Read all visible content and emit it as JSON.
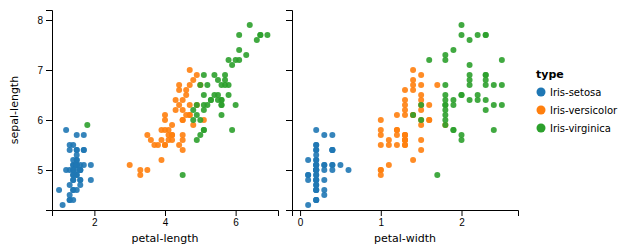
{
  "chart_data": [
    {
      "type": "scatter",
      "xlabel": "petal-length",
      "ylabel": "sepal-length",
      "xlim": [
        0.8,
        7.2
      ],
      "xticks": [
        2,
        4,
        6
      ],
      "ylim": [
        4.2,
        8.2
      ],
      "yticks": [
        5,
        6,
        7,
        8
      ],
      "series": [
        {
          "name": "Iris-setosa",
          "color": "#1f77b4",
          "x": [
            1.4,
            1.4,
            1.3,
            1.5,
            1.4,
            1.7,
            1.4,
            1.5,
            1.4,
            1.5,
            1.5,
            1.6,
            1.4,
            1.1,
            1.2,
            1.5,
            1.3,
            1.4,
            1.7,
            1.5,
            1.7,
            1.5,
            1.0,
            1.7,
            1.9,
            1.6,
            1.6,
            1.5,
            1.4,
            1.6,
            1.6,
            1.5,
            1.5,
            1.4,
            1.5,
            1.2,
            1.3,
            1.4,
            1.3,
            1.5,
            1.3,
            1.3,
            1.3,
            1.6,
            1.9,
            1.4,
            1.6,
            1.4,
            1.5,
            1.4
          ],
          "values": [
            5.1,
            4.9,
            4.7,
            4.6,
            5.0,
            5.4,
            4.6,
            5.0,
            4.4,
            4.9,
            5.4,
            4.8,
            4.8,
            4.3,
            5.8,
            5.7,
            5.4,
            5.1,
            5.7,
            5.1,
            5.4,
            5.1,
            4.6,
            5.1,
            4.8,
            5.0,
            5.0,
            5.2,
            5.2,
            4.7,
            4.8,
            5.4,
            5.2,
            5.5,
            4.9,
            5.0,
            5.5,
            4.9,
            4.4,
            5.1,
            5.0,
            4.5,
            4.4,
            5.0,
            5.1,
            4.8,
            5.1,
            4.6,
            5.3,
            5.0
          ]
        },
        {
          "name": "Iris-versicolor",
          "color": "#ff7f0e",
          "x": [
            4.7,
            4.5,
            4.9,
            4.0,
            4.6,
            4.5,
            4.7,
            3.3,
            4.6,
            3.9,
            3.5,
            4.2,
            4.0,
            4.7,
            3.6,
            4.4,
            4.5,
            4.1,
            4.5,
            3.9,
            4.8,
            4.0,
            4.9,
            4.7,
            4.3,
            4.4,
            4.8,
            5.0,
            4.5,
            3.5,
            3.8,
            3.7,
            3.9,
            5.1,
            4.5,
            4.5,
            4.7,
            4.4,
            4.1,
            4.0,
            4.4,
            4.6,
            4.0,
            3.3,
            4.2,
            4.2,
            4.2,
            4.3,
            3.0,
            4.1
          ],
          "values": [
            7.0,
            6.4,
            6.9,
            5.5,
            6.5,
            5.7,
            6.3,
            4.9,
            6.6,
            5.2,
            5.0,
            5.9,
            6.0,
            6.1,
            5.6,
            6.7,
            5.6,
            5.8,
            6.2,
            5.6,
            5.9,
            6.1,
            6.3,
            6.1,
            6.4,
            6.6,
            6.8,
            6.7,
            6.0,
            5.7,
            5.5,
            5.5,
            5.8,
            6.0,
            5.4,
            6.0,
            6.7,
            6.3,
            5.6,
            5.5,
            5.5,
            6.1,
            5.8,
            5.0,
            5.6,
            5.7,
            5.7,
            6.2,
            5.1,
            5.7
          ]
        },
        {
          "name": "Iris-virginica",
          "color": "#2ca02c",
          "x": [
            6.0,
            5.1,
            5.9,
            5.6,
            5.8,
            6.6,
            4.5,
            6.3,
            5.8,
            6.1,
            5.1,
            5.3,
            5.5,
            5.0,
            5.1,
            5.3,
            5.5,
            6.7,
            6.9,
            5.0,
            5.7,
            4.9,
            6.7,
            4.9,
            5.7,
            6.0,
            4.8,
            4.9,
            5.6,
            5.8,
            6.1,
            6.4,
            5.6,
            5.1,
            5.6,
            6.1,
            5.6,
            5.5,
            4.8,
            5.4,
            5.6,
            5.1,
            5.9,
            5.7,
            5.2,
            5.0,
            5.2,
            5.4,
            5.1,
            1.8
          ],
          "values": [
            6.3,
            5.8,
            7.1,
            6.3,
            6.5,
            7.6,
            4.9,
            7.3,
            6.7,
            7.2,
            6.5,
            6.4,
            6.8,
            5.7,
            5.8,
            6.4,
            6.5,
            7.7,
            7.7,
            6.0,
            6.9,
            5.6,
            7.7,
            6.3,
            6.7,
            7.2,
            6.2,
            6.1,
            6.4,
            7.2,
            7.4,
            7.9,
            6.4,
            6.3,
            6.1,
            7.7,
            6.3,
            6.4,
            6.0,
            6.9,
            6.7,
            6.9,
            5.8,
            6.8,
            6.7,
            6.7,
            6.3,
            6.5,
            6.2,
            5.9
          ]
        }
      ]
    },
    {
      "type": "scatter",
      "xlabel": "petal-width",
      "legend_title": "type",
      "legend": "right",
      "tick_labels": "x",
      "xlim": [
        -0.1,
        2.7
      ],
      "xticks": [
        0,
        1,
        2
      ],
      "ylim": [
        4.2,
        8.2
      ],
      "yticks": [
        5,
        6,
        7,
        8
      ],
      "series": [
        {
          "name": "Iris-setosa",
          "color": "#1f77b4",
          "x": [
            0.2,
            0.2,
            0.2,
            0.2,
            0.2,
            0.4,
            0.3,
            0.2,
            0.2,
            0.1,
            0.2,
            0.2,
            0.1,
            0.1,
            0.2,
            0.4,
            0.4,
            0.3,
            0.3,
            0.3,
            0.2,
            0.4,
            0.2,
            0.5,
            0.2,
            0.2,
            0.4,
            0.2,
            0.2,
            0.2,
            0.2,
            0.4,
            0.1,
            0.2,
            0.2,
            0.2,
            0.2,
            0.1,
            0.2,
            0.2,
            0.3,
            0.3,
            0.2,
            0.6,
            0.4,
            0.3,
            0.2,
            0.2,
            0.2,
            0.2
          ],
          "values": [
            5.1,
            4.9,
            4.7,
            4.6,
            5.0,
            5.4,
            4.6,
            5.0,
            4.4,
            4.9,
            5.4,
            4.8,
            4.8,
            4.3,
            5.8,
            5.7,
            5.4,
            5.1,
            5.7,
            5.1,
            5.4,
            5.1,
            4.6,
            5.1,
            4.8,
            5.0,
            5.0,
            5.2,
            5.2,
            4.7,
            4.8,
            5.4,
            5.2,
            5.5,
            4.9,
            5.0,
            5.5,
            4.9,
            4.4,
            5.1,
            5.0,
            4.5,
            4.4,
            5.0,
            5.1,
            4.8,
            5.1,
            4.6,
            5.3,
            5.0
          ]
        },
        {
          "name": "Iris-versicolor",
          "color": "#ff7f0e",
          "x": [
            1.4,
            1.5,
            1.5,
            1.3,
            1.5,
            1.3,
            1.6,
            1.0,
            1.3,
            1.4,
            1.0,
            1.5,
            1.0,
            1.4,
            1.3,
            1.4,
            1.5,
            1.0,
            1.5,
            1.1,
            1.8,
            1.3,
            1.5,
            1.2,
            1.3,
            1.4,
            1.4,
            1.7,
            1.5,
            1.0,
            1.1,
            1.0,
            1.2,
            1.6,
            1.5,
            1.6,
            1.5,
            1.3,
            1.3,
            1.3,
            1.2,
            1.4,
            1.2,
            1.0,
            1.3,
            1.2,
            1.3,
            1.3,
            1.1,
            1.3
          ],
          "values": [
            7.0,
            6.4,
            6.9,
            5.5,
            6.5,
            5.7,
            6.3,
            4.9,
            6.6,
            5.2,
            5.0,
            5.9,
            6.0,
            6.1,
            5.6,
            6.7,
            5.6,
            5.8,
            6.2,
            5.6,
            5.9,
            6.1,
            6.3,
            6.1,
            6.4,
            6.6,
            6.8,
            6.7,
            6.0,
            5.7,
            5.5,
            5.5,
            5.8,
            6.0,
            5.4,
            6.0,
            6.7,
            6.3,
            5.6,
            5.5,
            5.5,
            6.1,
            5.8,
            5.0,
            5.6,
            5.7,
            5.7,
            6.2,
            5.1,
            5.7
          ]
        },
        {
          "name": "Iris-virginica",
          "color": "#2ca02c",
          "x": [
            2.5,
            1.9,
            2.1,
            1.8,
            2.2,
            2.1,
            1.7,
            1.8,
            1.8,
            2.5,
            2.0,
            1.9,
            2.1,
            2.0,
            2.4,
            2.3,
            1.8,
            2.2,
            2.3,
            1.5,
            2.3,
            2.0,
            2.0,
            1.8,
            2.1,
            1.8,
            1.8,
            1.8,
            2.1,
            1.6,
            1.9,
            2.0,
            2.2,
            1.5,
            1.4,
            2.3,
            2.4,
            1.8,
            1.8,
            2.1,
            2.4,
            2.3,
            1.9,
            2.3,
            2.5,
            2.3,
            1.9,
            2.0,
            2.3,
            1.8
          ],
          "values": [
            6.3,
            5.8,
            7.1,
            6.3,
            6.5,
            7.6,
            4.9,
            7.3,
            6.7,
            7.2,
            6.5,
            6.4,
            6.8,
            5.7,
            5.8,
            6.4,
            6.5,
            7.7,
            7.7,
            6.0,
            6.9,
            5.6,
            7.7,
            6.3,
            6.7,
            7.2,
            6.2,
            6.1,
            6.4,
            7.2,
            7.4,
            7.9,
            6.4,
            6.3,
            6.1,
            7.7,
            6.3,
            6.4,
            6.0,
            6.9,
            6.7,
            6.9,
            5.8,
            6.8,
            6.7,
            6.7,
            6.3,
            6.5,
            6.2,
            5.9
          ]
        }
      ]
    }
  ]
}
